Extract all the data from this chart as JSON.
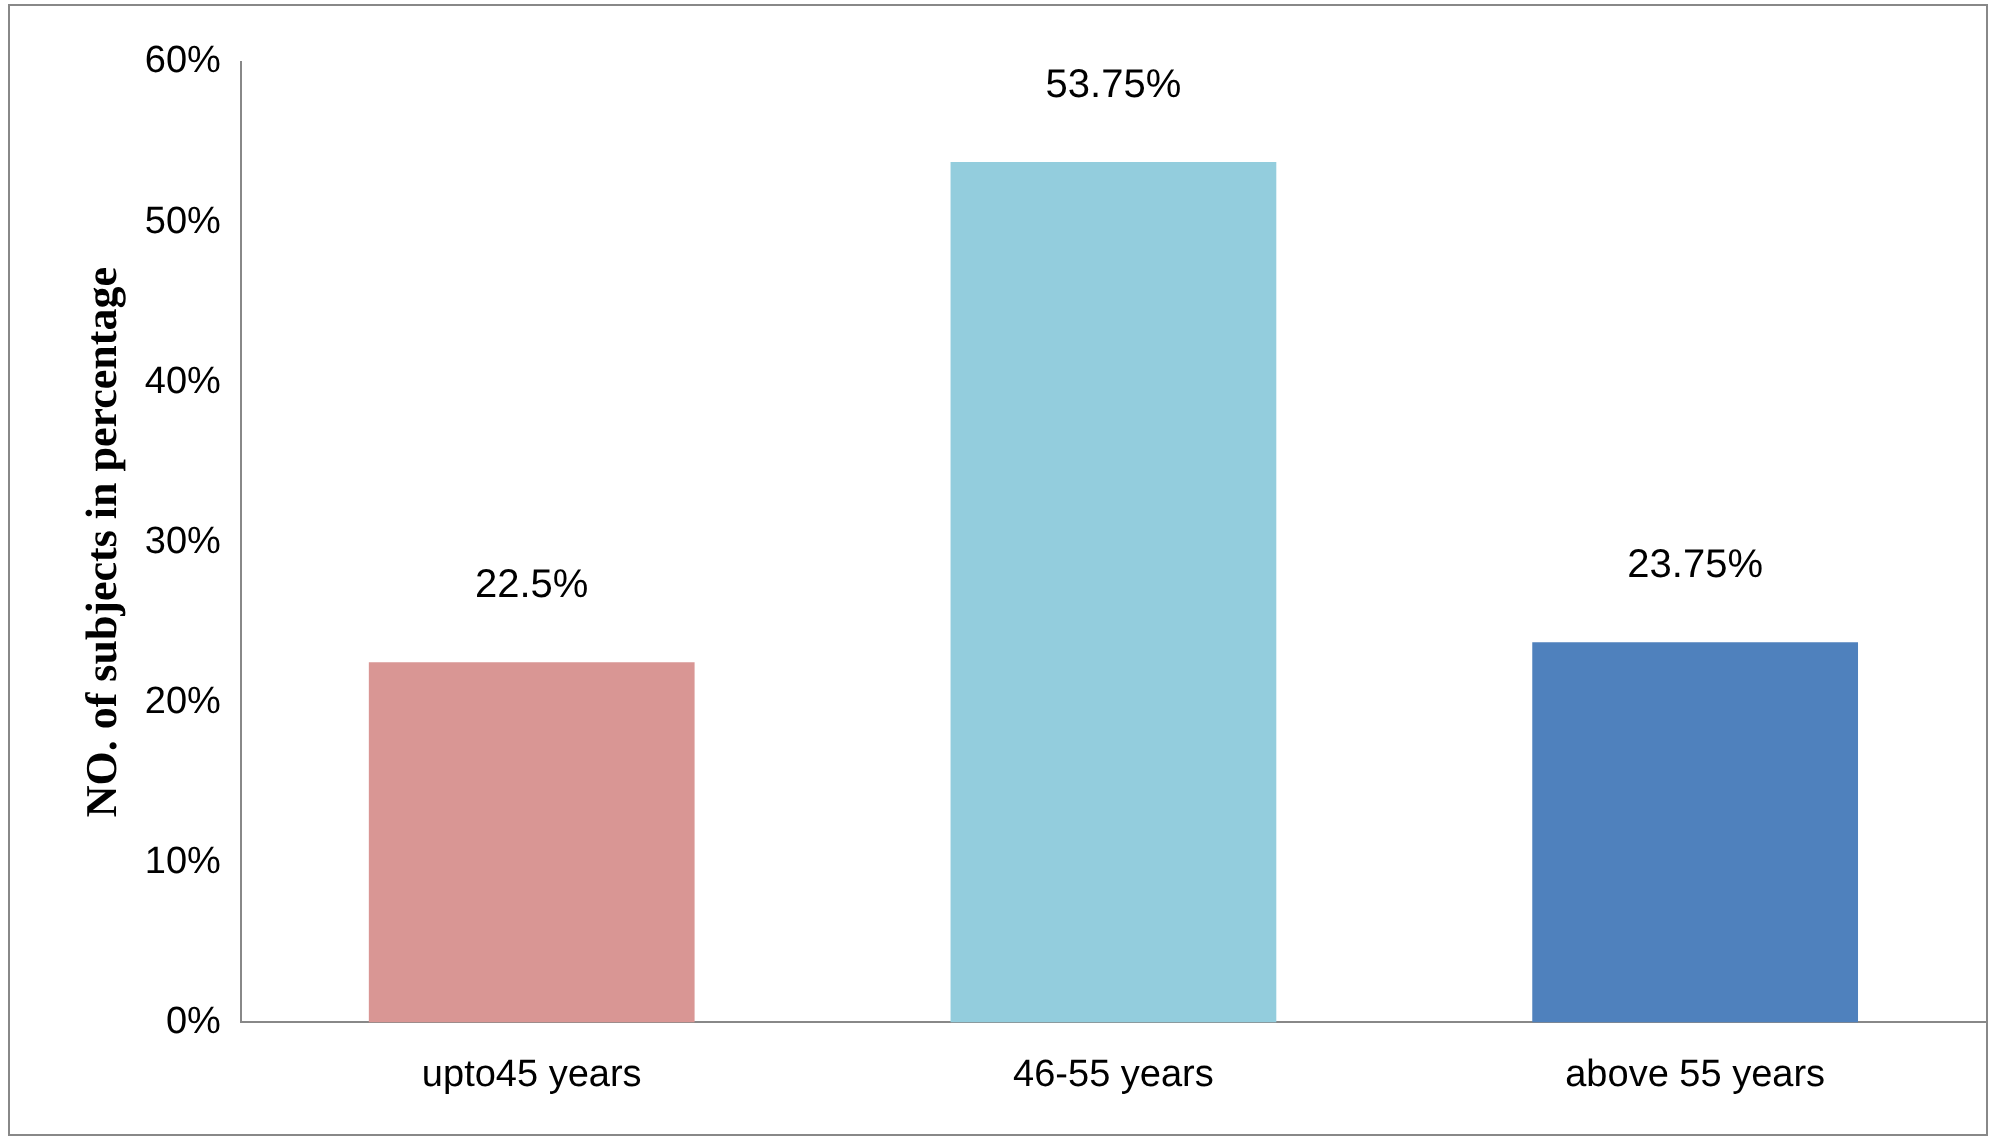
{
  "chart_data": {
    "type": "bar",
    "ylabel": "NO. of subjects in percentage",
    "categories": [
      "upto45 years",
      "46-55 years",
      "above 55 years"
    ],
    "values": [
      22.5,
      53.75,
      23.75
    ],
    "colors": [
      "#d99694",
      "#93cddd",
      "#4f81bd"
    ],
    "value_labels": [
      "22.5%",
      "53.75%",
      "23.75%"
    ],
    "ylim": [
      0,
      60
    ],
    "yticks": [
      {
        "value": 0,
        "label": "0%"
      },
      {
        "value": 10,
        "label": "10%"
      },
      {
        "value": 20,
        "label": "20%"
      },
      {
        "value": 30,
        "label": "30%"
      },
      {
        "value": 40,
        "label": "40%"
      },
      {
        "value": 50,
        "label": "50%"
      },
      {
        "value": 60,
        "label": "60%"
      }
    ],
    "grid": false,
    "legend": false
  }
}
